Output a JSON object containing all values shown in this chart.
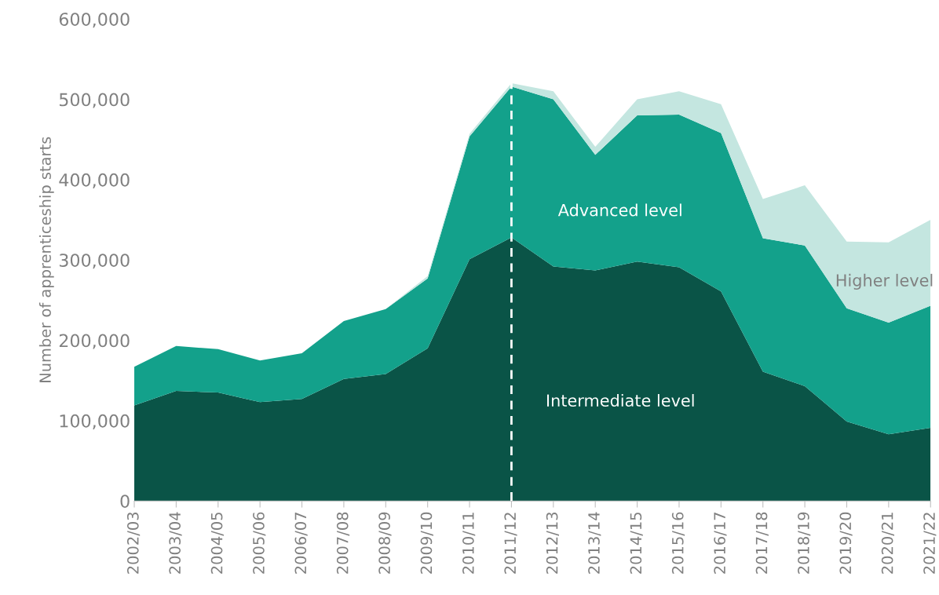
{
  "chart_data": {
    "type": "area",
    "stacked": true,
    "ylabel": "Number of apprenticeship starts",
    "categories": [
      "2002/03",
      "2003/04",
      "2004/05",
      "2005/06",
      "2006/07",
      "2007/08",
      "2008/09",
      "2009/10",
      "2010/11",
      "2011/12",
      "2012/13",
      "2013/14",
      "2014/15",
      "2015/16",
      "2016/17",
      "2017/18",
      "2018/19",
      "2019/20",
      "2020/21",
      "2021/22"
    ],
    "series": [
      {
        "name": "Intermediate level",
        "color": "#0a5447",
        "values": [
          119000,
          137000,
          135000,
          123000,
          127000,
          152000,
          158000,
          190000,
          301000,
          328000,
          292000,
          287000,
          298000,
          291000,
          261000,
          161000,
          143000,
          99000,
          83000,
          91000
        ]
      },
      {
        "name": "Advanced level",
        "color": "#13a18b",
        "values": [
          48000,
          56000,
          54000,
          52000,
          57000,
          72000,
          81000,
          87000,
          153000,
          188000,
          208000,
          144000,
          182000,
          190000,
          197000,
          166000,
          175000,
          141000,
          139000,
          152000
        ]
      },
      {
        "name": "Higher level",
        "color": "#c4e6e0",
        "values": [
          0,
          0,
          0,
          0,
          0,
          0,
          0,
          3000,
          3000,
          4000,
          10000,
          10000,
          20000,
          29000,
          36000,
          49000,
          75000,
          83000,
          100000,
          107000
        ]
      }
    ],
    "ylim": [
      0,
      600000
    ],
    "yticks": [
      0,
      {
        "value": 100000,
        "label": "100,000"
      },
      {
        "value": 200000,
        "label": "200,000"
      },
      {
        "value": 300000,
        "label": "300,000"
      },
      {
        "value": 400000,
        "label": "400,000"
      },
      {
        "value": 500000,
        "label": "500,000"
      },
      {
        "value": 600000,
        "label": "600,000"
      }
    ],
    "ref_lines": [
      {
        "axis": "x",
        "value": "2011/12",
        "color": "#ffffff",
        "line_style": "dashed"
      }
    ],
    "grid": false,
    "legend": false
  }
}
